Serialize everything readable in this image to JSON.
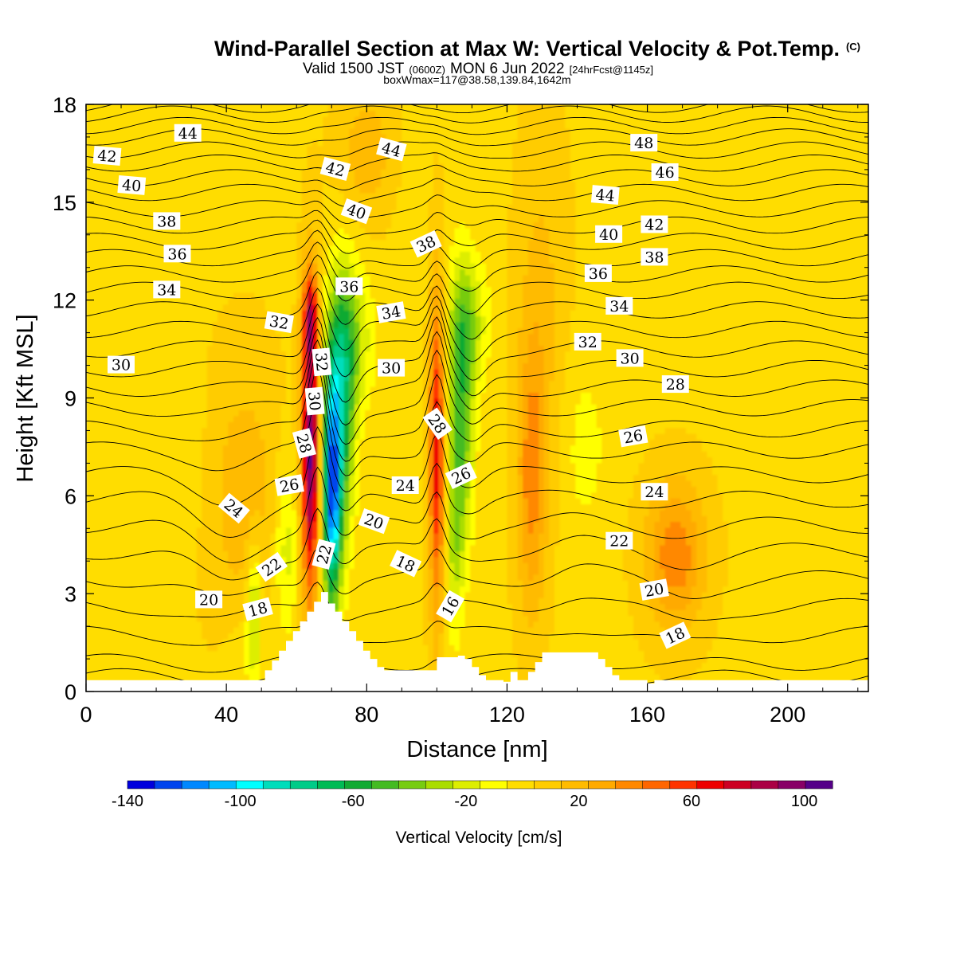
{
  "title": {
    "main": "Wind-Parallel Section at Max W: Vertical Velocity & Pot.Temp.",
    "main_mark": "(C)",
    "sub_a": "Valid 1500 JST",
    "sub_b": "(0600Z)",
    "sub_c": "MON 6 Jun 2022",
    "sub_d": "[24hrFcst@1145z]",
    "info": "boxWmax=117@38.58,139.84,1642m"
  },
  "chart_data": {
    "type": "heatmap",
    "xlabel": "Distance [nm]",
    "ylabel": "Height [Kft MSL]",
    "xlim": [
      0,
      223
    ],
    "ylim": [
      0,
      18
    ],
    "x_ticks": [
      0,
      40,
      80,
      120,
      160,
      200
    ],
    "y_ticks": [
      0,
      3,
      6,
      9,
      12,
      15,
      18
    ],
    "grid": false,
    "colorbar": {
      "title": "Vertical Velocity [cm/s]",
      "min": -140,
      "max": 110,
      "step": 10,
      "tick_values": [
        -140,
        -100,
        -60,
        -20,
        20,
        60,
        100
      ],
      "colors": [
        "#0000dd",
        "#0044ee",
        "#0088ff",
        "#00bbff",
        "#00ffff",
        "#00ddbb",
        "#00cc88",
        "#00bb55",
        "#11aa33",
        "#44bb22",
        "#77cc11",
        "#aadd00",
        "#ddee00",
        "#ffff00",
        "#ffdd00",
        "#ffcc00",
        "#ffbb00",
        "#ffaa00",
        "#ff8800",
        "#ff6600",
        "#ff3300",
        "#ee0000",
        "#cc0022",
        "#aa0044",
        "#880066",
        "#550088"
      ]
    },
    "background_velocity": 8,
    "velocity_cells": [
      {
        "x": 64,
        "y": 7.5,
        "sx": 1.8,
        "sy": 3.2,
        "v": 105
      },
      {
        "x": 64,
        "y": 11.5,
        "sx": 1.5,
        "sy": 0.9,
        "v": 50
      },
      {
        "x": 70,
        "y": 6.2,
        "sx": 1.8,
        "sy": 2.5,
        "v": -120
      },
      {
        "x": 73,
        "y": 8.5,
        "sx": 2.5,
        "sy": 2.8,
        "v": -60
      },
      {
        "x": 75,
        "y": 10.8,
        "sx": 4.5,
        "sy": 1.6,
        "v": -35
      },
      {
        "x": 57,
        "y": 4.5,
        "sx": 2.5,
        "sy": 2.0,
        "v": -25
      },
      {
        "x": 100,
        "y": 7.5,
        "sx": 1.6,
        "sy": 3.5,
        "v": 70
      },
      {
        "x": 107,
        "y": 8.5,
        "sx": 2.5,
        "sy": 2.8,
        "v": -50
      },
      {
        "x": 109,
        "y": 11.3,
        "sx": 4.0,
        "sy": 1.4,
        "v": -30
      },
      {
        "x": 105,
        "y": 4.5,
        "sx": 1.8,
        "sy": 2.0,
        "v": -25
      },
      {
        "x": 127,
        "y": 6.5,
        "sx": 3.0,
        "sy": 3.0,
        "v": 35
      },
      {
        "x": 168,
        "y": 4.2,
        "sx": 6.0,
        "sy": 1.6,
        "v": 40
      },
      {
        "x": 142,
        "y": 7.5,
        "sx": 5.0,
        "sy": 2.0,
        "v": -12
      },
      {
        "x": 45,
        "y": 6.0,
        "sx": 8.0,
        "sy": 3.0,
        "v": 18
      },
      {
        "x": 30,
        "y": 7.0,
        "sx": 5.0,
        "sy": 2.0,
        "v": -5
      },
      {
        "x": 10,
        "y": 4.5,
        "sx": 4.0,
        "sy": 4.0,
        "v": -5
      },
      {
        "x": 93,
        "y": 13.0,
        "sx": 4.0,
        "sy": 3.0,
        "v": -5
      },
      {
        "x": 130,
        "y": 12.0,
        "sx": 5.0,
        "sy": 4.0,
        "v": 14
      },
      {
        "x": 80,
        "y": 16.5,
        "sx": 6.0,
        "sy": 1.5,
        "v": 18
      },
      {
        "x": 45,
        "y": 1.2,
        "sx": 4.0,
        "sy": 1.0,
        "v": -8
      },
      {
        "x": 48,
        "y": 2.5,
        "sx": 1.5,
        "sy": 1.5,
        "v": -35
      }
    ],
    "terrain_kft": [
      [
        0,
        0.35
      ],
      [
        51,
        0.35
      ],
      [
        51,
        0.65
      ],
      [
        53,
        0.65
      ],
      [
        53,
        0.95
      ],
      [
        55,
        0.95
      ],
      [
        55,
        1.25
      ],
      [
        57,
        1.25
      ],
      [
        57,
        1.55
      ],
      [
        59,
        1.55
      ],
      [
        59,
        1.85
      ],
      [
        61,
        1.85
      ],
      [
        61,
        2.15
      ],
      [
        63,
        2.15
      ],
      [
        63,
        2.45
      ],
      [
        65,
        2.45
      ],
      [
        65,
        2.75
      ],
      [
        67,
        2.75
      ],
      [
        67,
        3.05
      ],
      [
        69,
        3.05
      ],
      [
        69,
        2.7
      ],
      [
        71,
        2.7
      ],
      [
        71,
        2.45
      ],
      [
        73,
        2.45
      ],
      [
        73,
        2.15
      ],
      [
        75,
        2.15
      ],
      [
        75,
        1.85
      ],
      [
        77,
        1.85
      ],
      [
        77,
        1.55
      ],
      [
        79,
        1.55
      ],
      [
        79,
        1.25
      ],
      [
        81,
        1.25
      ],
      [
        81,
        1.0
      ],
      [
        83,
        1.0
      ],
      [
        83,
        0.75
      ],
      [
        85,
        0.75
      ],
      [
        85,
        0.65
      ],
      [
        93,
        0.65
      ],
      [
        93,
        0.65
      ],
      [
        96,
        0.65
      ],
      [
        96,
        0.65
      ],
      [
        100,
        0.65
      ],
      [
        100,
        1.05
      ],
      [
        106,
        1.05
      ],
      [
        106,
        1.1
      ],
      [
        108,
        1.1
      ],
      [
        108,
        1.0
      ],
      [
        110,
        1.0
      ],
      [
        110,
        0.75
      ],
      [
        112,
        0.75
      ],
      [
        112,
        0.5
      ],
      [
        114,
        0.5
      ],
      [
        114,
        0.35
      ],
      [
        119,
        0.35
      ],
      [
        119,
        0.3
      ],
      [
        121,
        0.3
      ],
      [
        121,
        0.6
      ],
      [
        123,
        0.6
      ],
      [
        123,
        0.35
      ],
      [
        126,
        0.35
      ],
      [
        126,
        0.6
      ],
      [
        128,
        0.6
      ],
      [
        128,
        0.9
      ],
      [
        130,
        0.9
      ],
      [
        130,
        1.2
      ],
      [
        136,
        1.2
      ],
      [
        136,
        1.2
      ],
      [
        146,
        1.2
      ],
      [
        146,
        1.0
      ],
      [
        148,
        1.0
      ],
      [
        148,
        0.75
      ],
      [
        150,
        0.75
      ],
      [
        150,
        0.5
      ],
      [
        152,
        0.5
      ],
      [
        152,
        0.35
      ],
      [
        160,
        0.35
      ],
      [
        160,
        0.25
      ],
      [
        162,
        0.25
      ],
      [
        162,
        0.35
      ],
      [
        223,
        0.35
      ]
    ],
    "contour_labels": [
      {
        "text": "44",
        "x": 29,
        "y": 17.1,
        "angle": 0
      },
      {
        "text": "42",
        "x": 6,
        "y": 16.4,
        "angle": 5
      },
      {
        "text": "40",
        "x": 13,
        "y": 15.5,
        "angle": 5
      },
      {
        "text": "38",
        "x": 23,
        "y": 14.4,
        "angle": 0
      },
      {
        "text": "36",
        "x": 26,
        "y": 13.4,
        "angle": 0
      },
      {
        "text": "34",
        "x": 23,
        "y": 12.3,
        "angle": 0
      },
      {
        "text": "30",
        "x": 10,
        "y": 10.0,
        "angle": 0
      },
      {
        "text": "32",
        "x": 55,
        "y": 11.3,
        "angle": 10
      },
      {
        "text": "24",
        "x": 42,
        "y": 5.6,
        "angle": 40
      },
      {
        "text": "26",
        "x": 58,
        "y": 6.3,
        "angle": -10
      },
      {
        "text": "28",
        "x": 62,
        "y": 7.6,
        "angle": 75
      },
      {
        "text": "30",
        "x": 65,
        "y": 8.9,
        "angle": 85
      },
      {
        "text": "32",
        "x": 67,
        "y": 10.1,
        "angle": 85
      },
      {
        "text": "22",
        "x": 53,
        "y": 3.8,
        "angle": -35
      },
      {
        "text": "22",
        "x": 68,
        "y": 4.2,
        "angle": -75
      },
      {
        "text": "20",
        "x": 35,
        "y": 2.8,
        "angle": 0
      },
      {
        "text": "18",
        "x": 49,
        "y": 2.5,
        "angle": -15
      },
      {
        "text": "42",
        "x": 71,
        "y": 16.0,
        "angle": 15
      },
      {
        "text": "44",
        "x": 87,
        "y": 16.6,
        "angle": 15
      },
      {
        "text": "40",
        "x": 77,
        "y": 14.7,
        "angle": 20
      },
      {
        "text": "38",
        "x": 97,
        "y": 13.7,
        "angle": -25
      },
      {
        "text": "36",
        "x": 75,
        "y": 12.4,
        "angle": 0
      },
      {
        "text": "34",
        "x": 87,
        "y": 11.6,
        "angle": -10
      },
      {
        "text": "30",
        "x": 87,
        "y": 9.9,
        "angle": 0
      },
      {
        "text": "28",
        "x": 100,
        "y": 8.2,
        "angle": 55
      },
      {
        "text": "26",
        "x": 107,
        "y": 6.6,
        "angle": -25
      },
      {
        "text": "24",
        "x": 91,
        "y": 6.3,
        "angle": 0
      },
      {
        "text": "20",
        "x": 82,
        "y": 5.2,
        "angle": 20
      },
      {
        "text": "18",
        "x": 91,
        "y": 3.9,
        "angle": 25
      },
      {
        "text": "16",
        "x": 104,
        "y": 2.6,
        "angle": -60
      },
      {
        "text": "48",
        "x": 159,
        "y": 16.8,
        "angle": 0
      },
      {
        "text": "46",
        "x": 165,
        "y": 15.9,
        "angle": 0
      },
      {
        "text": "44",
        "x": 148,
        "y": 15.2,
        "angle": 5
      },
      {
        "text": "42",
        "x": 162,
        "y": 14.3,
        "angle": 0
      },
      {
        "text": "40",
        "x": 149,
        "y": 14.0,
        "angle": 0
      },
      {
        "text": "38",
        "x": 162,
        "y": 13.3,
        "angle": 0
      },
      {
        "text": "36",
        "x": 146,
        "y": 12.8,
        "angle": 0
      },
      {
        "text": "34",
        "x": 152,
        "y": 11.8,
        "angle": 0
      },
      {
        "text": "32",
        "x": 143,
        "y": 10.7,
        "angle": 0
      },
      {
        "text": "30",
        "x": 155,
        "y": 10.2,
        "angle": 0
      },
      {
        "text": "28",
        "x": 168,
        "y": 9.4,
        "angle": 0
      },
      {
        "text": "26",
        "x": 156,
        "y": 7.8,
        "angle": -10
      },
      {
        "text": "24",
        "x": 162,
        "y": 6.1,
        "angle": 0
      },
      {
        "text": "22",
        "x": 152,
        "y": 4.6,
        "angle": 0
      },
      {
        "text": "20",
        "x": 162,
        "y": 3.1,
        "angle": -10
      },
      {
        "text": "18",
        "x": 168,
        "y": 1.7,
        "angle": -25
      }
    ],
    "theta_levels": [
      16,
      17,
      18,
      19,
      20,
      21,
      22,
      23,
      24,
      25,
      26,
      27,
      28,
      29,
      30,
      31,
      32,
      33,
      34,
      35,
      36,
      37,
      38,
      39,
      40,
      41,
      42,
      43,
      44,
      45,
      46,
      47,
      48,
      49
    ],
    "theta_profile": [
      {
        "theta": 16,
        "y": 0.0
      },
      {
        "theta": 18,
        "y": 0.9
      },
      {
        "theta": 20,
        "y": 2.6
      },
      {
        "theta": 22,
        "y": 4.3
      },
      {
        "theta": 24,
        "y": 5.9
      },
      {
        "theta": 26,
        "y": 7.4
      },
      {
        "theta": 28,
        "y": 8.7
      },
      {
        "theta": 30,
        "y": 9.9
      },
      {
        "theta": 32,
        "y": 11.1
      },
      {
        "theta": 34,
        "y": 12.3
      },
      {
        "theta": 36,
        "y": 13.3
      },
      {
        "theta": 38,
        "y": 14.3
      },
      {
        "theta": 40,
        "y": 15.3
      },
      {
        "theta": 42,
        "y": 16.2
      },
      {
        "theta": 44,
        "y": 17.0
      },
      {
        "theta": 46,
        "y": 17.7
      },
      {
        "theta": 48,
        "y": 18.3
      },
      {
        "theta": 50,
        "y": 19.0
      }
    ]
  }
}
